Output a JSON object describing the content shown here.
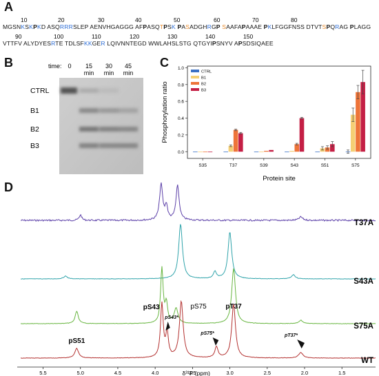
{
  "panels": {
    "a": "A",
    "b": "B",
    "c": "C",
    "d": "D"
  },
  "sequence": {
    "line1": [
      {
        "t": "MGSN",
        "c": "#111"
      },
      {
        "t": "K",
        "c": "#2f6fd6"
      },
      {
        "t": "S",
        "c": "#111"
      },
      {
        "t": "K",
        "c": "#2f6fd6"
      },
      {
        "t": "P",
        "c": "#111",
        "b": true
      },
      {
        "t": "K",
        "c": "#2f6fd6"
      },
      {
        "t": "D ASQ",
        "c": "#111"
      },
      {
        "t": "RRR",
        "c": "#2f6fd6"
      },
      {
        "t": "SLEP AENVHGAGGG AF",
        "c": "#111"
      },
      {
        "t": "P",
        "c": "#111",
        "b": true
      },
      {
        "t": "ASQ",
        "c": "#111"
      },
      {
        "t": "T",
        "c": "#e88a2a"
      },
      {
        "t": "P",
        "c": "#111",
        "b": true
      },
      {
        "t": "S",
        "c": "#111"
      },
      {
        "t": "K",
        "c": "#2f6fd6"
      },
      {
        "t": " ",
        "c": "#111"
      },
      {
        "t": "P",
        "c": "#111",
        "b": true
      },
      {
        "t": "A",
        "c": "#111"
      },
      {
        "t": "S",
        "c": "#e88a2a"
      },
      {
        "t": "ADGH",
        "c": "#111"
      },
      {
        "t": "R",
        "c": "#2f6fd6"
      },
      {
        "t": "G",
        "c": "#111"
      },
      {
        "t": "P",
        "c": "#111",
        "b": true
      },
      {
        "t": " ",
        "c": "#111"
      },
      {
        "t": "S",
        "c": "#e88a2a"
      },
      {
        "t": "AAFA",
        "c": "#111"
      },
      {
        "t": "P",
        "c": "#111",
        "b": true
      },
      {
        "t": "AAAE ",
        "c": "#111"
      },
      {
        "t": "P",
        "c": "#111",
        "b": true
      },
      {
        "t": "K",
        "c": "#2f6fd6"
      },
      {
        "t": "LFGGFNSS DTVT",
        "c": "#111"
      },
      {
        "t": "S",
        "c": "#e88a2a"
      },
      {
        "t": "P",
        "c": "#111",
        "b": true
      },
      {
        "t": "Q",
        "c": "#111"
      },
      {
        "t": "R",
        "c": "#2f6fd6"
      },
      {
        "t": "AG ",
        "c": "#111"
      },
      {
        "t": "P",
        "c": "#111",
        "b": true
      },
      {
        "t": "LAGG",
        "c": "#111"
      }
    ],
    "nums1": [
      "10",
      "20",
      "30",
      "40",
      "50",
      "60",
      "70",
      "80"
    ],
    "line2": [
      {
        "t": "VTTFV ALYDYES",
        "c": "#111"
      },
      {
        "t": "R",
        "c": "#2f6fd6"
      },
      {
        "t": "TE TDLSF",
        "c": "#111"
      },
      {
        "t": "KK",
        "c": "#2f6fd6"
      },
      {
        "t": "GE",
        "c": "#111"
      },
      {
        "t": "R",
        "c": "#2f6fd6"
      },
      {
        "t": " LQIVNNTEGD WWLAHSLSTG QTGYI",
        "c": "#111"
      },
      {
        "t": "P",
        "c": "#111",
        "b": true
      },
      {
        "t": "SNYV A",
        "c": "#111"
      },
      {
        "t": "P",
        "c": "#111",
        "b": true
      },
      {
        "t": "SDSIQAEE",
        "c": "#111"
      }
    ],
    "nums2": [
      "90",
      "100",
      "110",
      "120",
      "130",
      "140",
      "150"
    ]
  },
  "gel": {
    "time_label": "time:",
    "times": [
      "0",
      "15",
      "30",
      "45"
    ],
    "units": [
      "min",
      "min",
      "min"
    ],
    "bands": [
      "CTRL",
      "B1",
      "B2",
      "B3"
    ]
  },
  "chart_data": {
    "type": "bar",
    "categories": [
      "S35",
      "T37",
      "S39",
      "S43",
      "S51",
      "S75"
    ],
    "xlabel": "Protein site",
    "ylabel": "Phosphorylation ratio",
    "ylim": [
      -0.08,
      1.02
    ],
    "yticks": [
      "0.0",
      "0.2",
      "0.4",
      "0.6",
      "0.8",
      "1.0"
    ],
    "legend_position": "top-left",
    "series": [
      {
        "name": "CTRL",
        "color": "#3a6fc4",
        "values": [
          0.0,
          0.0,
          0.0,
          0.0,
          0.0,
          0.0
        ],
        "err": [
          0.0,
          0.0,
          0.0,
          0.0,
          0.0,
          0.02
        ]
      },
      {
        "name": "B1",
        "color": "#f5cf74",
        "values": [
          0.0,
          0.07,
          0.0,
          0.01,
          0.04,
          0.44
        ],
        "err": [
          0.0,
          0.01,
          0.0,
          0.0,
          0.02,
          0.08
        ]
      },
      {
        "name": "B2",
        "color": "#ee7439",
        "values": [
          0.0,
          0.26,
          0.01,
          0.09,
          0.05,
          0.71
        ],
        "err": [
          0.0,
          0.01,
          0.0,
          0.01,
          0.02,
          0.08
        ]
      },
      {
        "name": "B3",
        "color": "#c41f45",
        "values": [
          0.0,
          0.22,
          0.02,
          0.4,
          0.09,
          0.83
        ],
        "err": [
          0.0,
          0.01,
          0.0,
          0.01,
          0.03,
          0.14
        ]
      }
    ]
  },
  "nmr": {
    "xlabel": "δ³¹P (ppm)",
    "xticks": [
      "5.5",
      "5.0",
      "4.5",
      "4.0",
      "3.5",
      "3.0",
      "2.5",
      "2.0",
      "1.5"
    ],
    "traces": [
      {
        "name": "T37A",
        "color": "#5b3fa8"
      },
      {
        "name": "S43A",
        "color": "#2ea3aa"
      },
      {
        "name": "S75A",
        "color": "#67b53f"
      },
      {
        "name": "WT",
        "color": "#b3302f"
      }
    ],
    "labels": {
      "pS51": "pS51",
      "pS43": "pS43",
      "pS43s": "pS43*",
      "pS75": "pS75",
      "pS75s": "pS75*",
      "pT37": "pT37",
      "pT37s": "pT37*"
    }
  }
}
